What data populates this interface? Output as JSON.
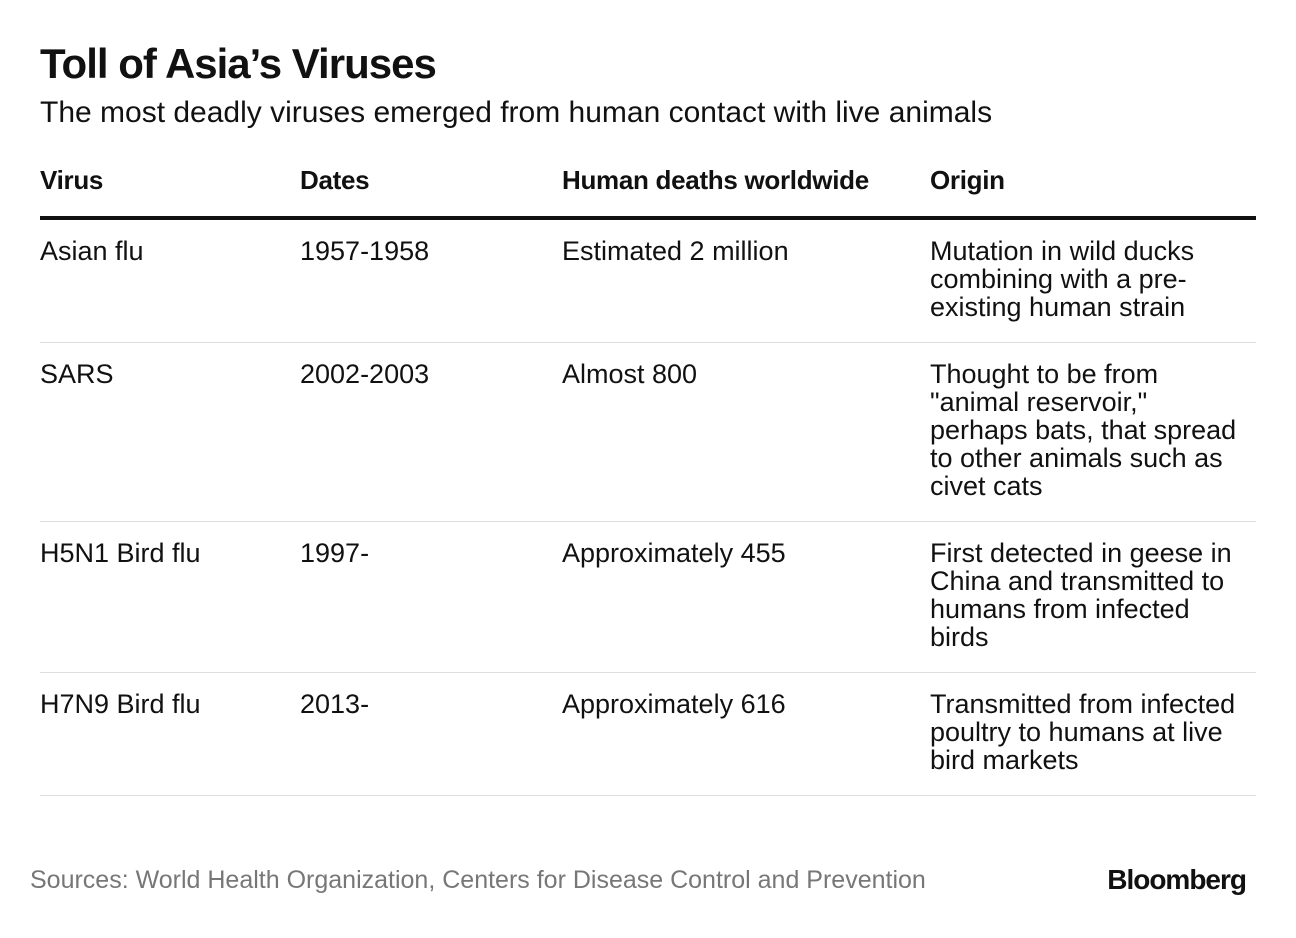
{
  "header": {
    "title": "Toll of Asia’s Viruses",
    "subtitle": "The most deadly viruses emerged from human contact with live animals"
  },
  "table": {
    "columns": [
      "Virus",
      "Dates",
      "Human deaths worldwide",
      "Origin"
    ],
    "rows": [
      [
        "Asian flu",
        "1957-1958",
        "Estimated 2 million",
        "Mutation in wild ducks combining with a pre-existing human strain"
      ],
      [
        "SARS",
        "2002-2003",
        "Almost 800",
        "Thought to be from \"animal reservoir,\" perhaps bats, that spread to other animals such as civet cats"
      ],
      [
        "H5N1 Bird flu",
        "1997-",
        "Approximately 455",
        "First detected in geese in China and transmitted to humans from infected birds"
      ],
      [
        "H7N9 Bird flu",
        "2013-",
        "Approximately 616",
        "Transmitted from infected poultry to humans at live bird markets"
      ]
    ]
  },
  "footer": {
    "source": "Sources: World Health Organization, Centers for Disease Control and Prevention",
    "brand": "Bloomberg"
  }
}
